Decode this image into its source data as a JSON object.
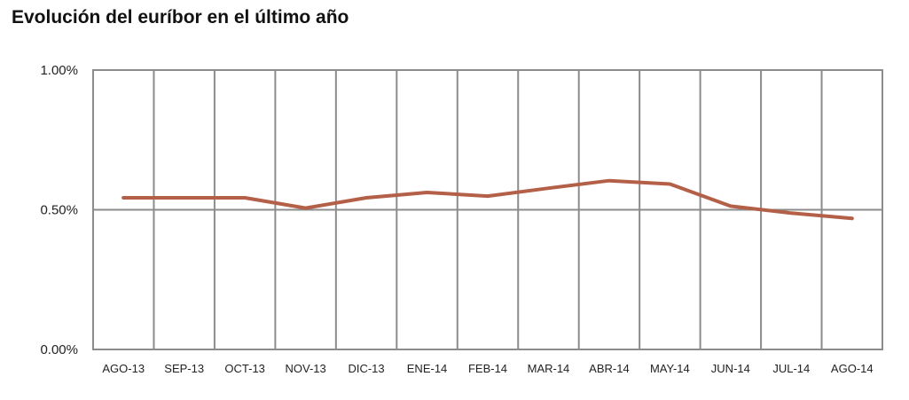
{
  "chart_data": {
    "type": "line",
    "title": "Evolución del euríbor en el último año",
    "xlabel": "",
    "ylabel": "",
    "categories": [
      "AGO-13",
      "SEP-13",
      "OCT-13",
      "NOV-13",
      "DIC-13",
      "ENE-14",
      "FEB-14",
      "MAR-14",
      "ABR-14",
      "MAY-14",
      "JUN-14",
      "JUL-14",
      "AGO-14"
    ],
    "y_tick_labels": [
      "1.00%",
      "0.50%",
      "0.00%"
    ],
    "y_ticks": [
      1.0,
      0.5,
      0.0
    ],
    "ylim": [
      0,
      1.0
    ],
    "grid": true,
    "legend": "none",
    "series": [
      {
        "values": [
          0.543,
          0.543,
          0.543,
          0.506,
          0.543,
          0.562,
          0.549,
          0.577,
          0.604,
          0.592,
          0.513,
          0.488,
          0.469
        ],
        "color": "#b45f47"
      }
    ],
    "colors": {
      "line": "#b45f47",
      "grid": "#8c8c8c",
      "axis": "#8c8c8c",
      "text": "#222222"
    }
  }
}
